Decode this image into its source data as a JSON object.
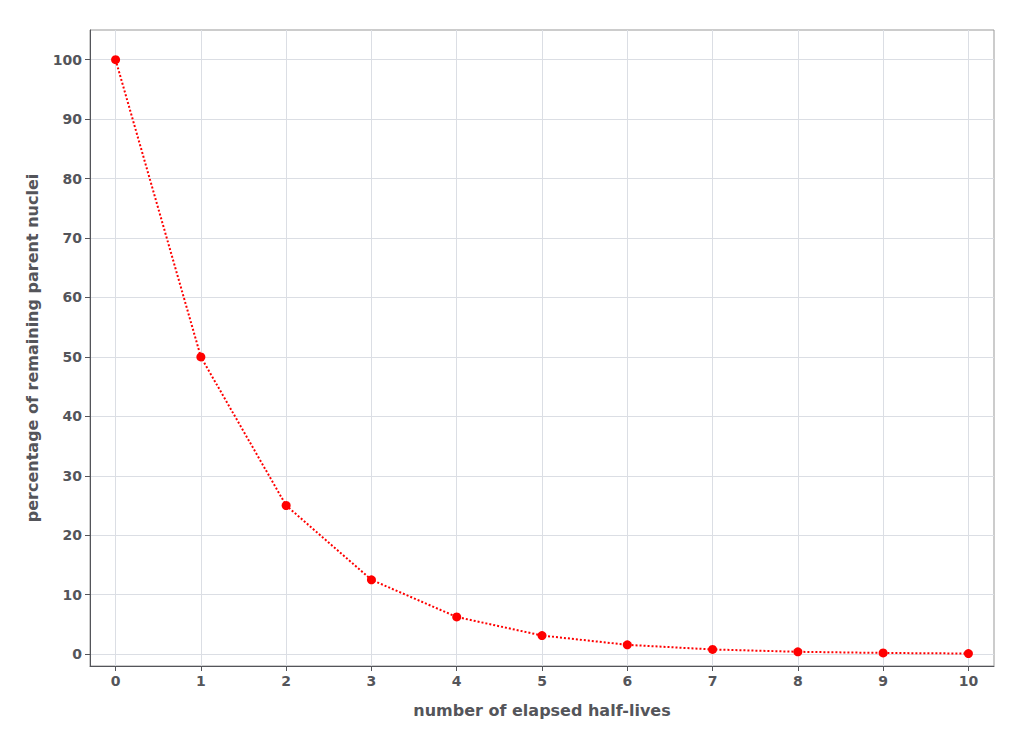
{
  "chart_data": {
    "type": "line",
    "x": [
      0,
      1,
      2,
      3,
      4,
      5,
      6,
      7,
      8,
      9,
      10
    ],
    "values": [
      100.0,
      50.0,
      25.0,
      12.5,
      6.25,
      3.125,
      1.5625,
      0.78125,
      0.390625,
      0.1953125,
      0.09765625
    ],
    "xlabel": "number of elapsed half-lives",
    "ylabel": "percentage of remaining parent nuclei",
    "xlim": [
      -0.3,
      10.3
    ],
    "ylim": [
      -2,
      105
    ],
    "xticks": [
      0,
      1,
      2,
      3,
      4,
      5,
      6,
      7,
      8,
      9,
      10
    ],
    "yticks": [
      0,
      10,
      20,
      30,
      40,
      50,
      60,
      70,
      80,
      90,
      100
    ],
    "grid": true,
    "color": "#ff0000",
    "marker": "circle",
    "line_style": "dotted"
  }
}
